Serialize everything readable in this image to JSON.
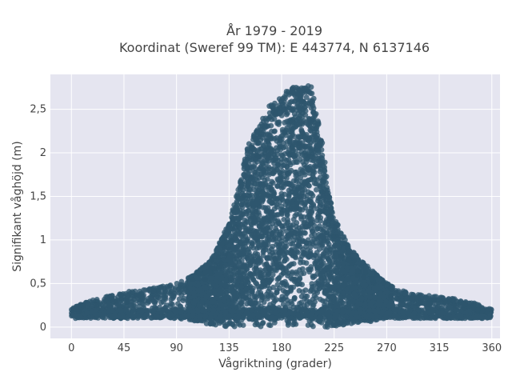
{
  "chart_data": {
    "type": "scatter",
    "title_line1": "År 1979 - 2019",
    "title_line2": "Koordinat (Sweref 99 TM): E 443774, N 6137146",
    "xlabel": "Vågriktning (grader)",
    "ylabel": "Signifikant våghöjd (m)",
    "xlim": [
      -18,
      367
    ],
    "ylim": [
      -0.13,
      2.9
    ],
    "xticks": [
      0,
      45,
      90,
      135,
      180,
      225,
      270,
      315,
      360
    ],
    "xtick_labels": [
      "0",
      "45",
      "90",
      "135",
      "180",
      "225",
      "270",
      "315",
      "360"
    ],
    "yticks": [
      0,
      0.5,
      1,
      1.5,
      2,
      2.5
    ],
    "ytick_labels": [
      "0",
      "0,5",
      "1",
      "1,5",
      "2",
      "2,5"
    ],
    "grid": true,
    "legend": "none",
    "marker_color": "#2e566e",
    "envelope_upper": {
      "x": [
        0,
        20,
        45,
        70,
        90,
        105,
        120,
        135,
        145,
        150,
        160,
        170,
        175,
        180,
        185,
        190,
        195,
        200,
        205,
        210,
        215,
        220,
        225,
        235,
        245,
        255,
        270,
        290,
        315,
        340,
        360
      ],
      "y": [
        0.22,
        0.32,
        0.4,
        0.45,
        0.5,
        0.6,
        0.78,
        1.2,
        1.7,
        2.05,
        2.3,
        2.55,
        2.62,
        2.63,
        2.72,
        2.76,
        2.75,
        2.8,
        2.78,
        2.5,
        2.1,
        1.6,
        1.25,
        1.0,
        0.8,
        0.68,
        0.5,
        0.38,
        0.35,
        0.3,
        0.2
      ]
    },
    "envelope_lower": {
      "x": [
        0,
        90,
        110,
        135,
        180,
        225,
        250,
        270,
        360
      ],
      "y": [
        0.1,
        0.1,
        0.05,
        0.0,
        0.0,
        0.0,
        0.05,
        0.1,
        0.1
      ]
    },
    "notes": "Dense cloud of several thousand observations; individual points not enumerable. Envelope arrays give approximate upper and lower bounds of the point cloud."
  }
}
